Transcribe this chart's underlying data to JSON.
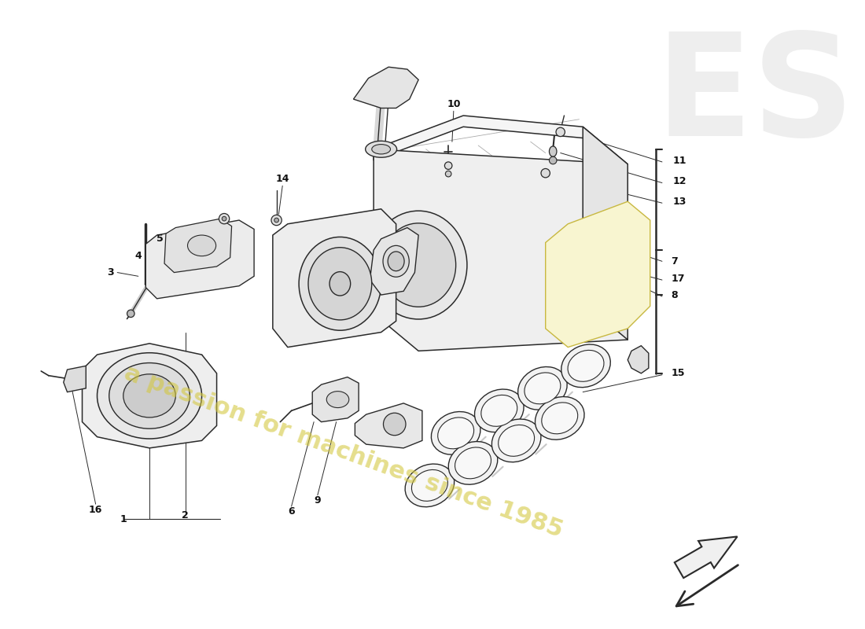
{
  "background_color": "#ffffff",
  "drawing_color": "#2a2a2a",
  "text_color": "#111111",
  "watermark_color": "#d4c840",
  "logo_color": "#c8c8c8",
  "arrow_color": "#1a1a1a",
  "lw_main": 1.2,
  "lw_thin": 0.7,
  "lw_leader": 0.7,
  "label_fontsize": 9,
  "watermark_text": "a passion for machines since 1985",
  "part_numbers": [
    "1",
    "2",
    "3",
    "4",
    "5",
    "6",
    "7",
    "8",
    "9",
    "10",
    "11",
    "12",
    "13",
    "14",
    "15",
    "16",
    "17"
  ]
}
